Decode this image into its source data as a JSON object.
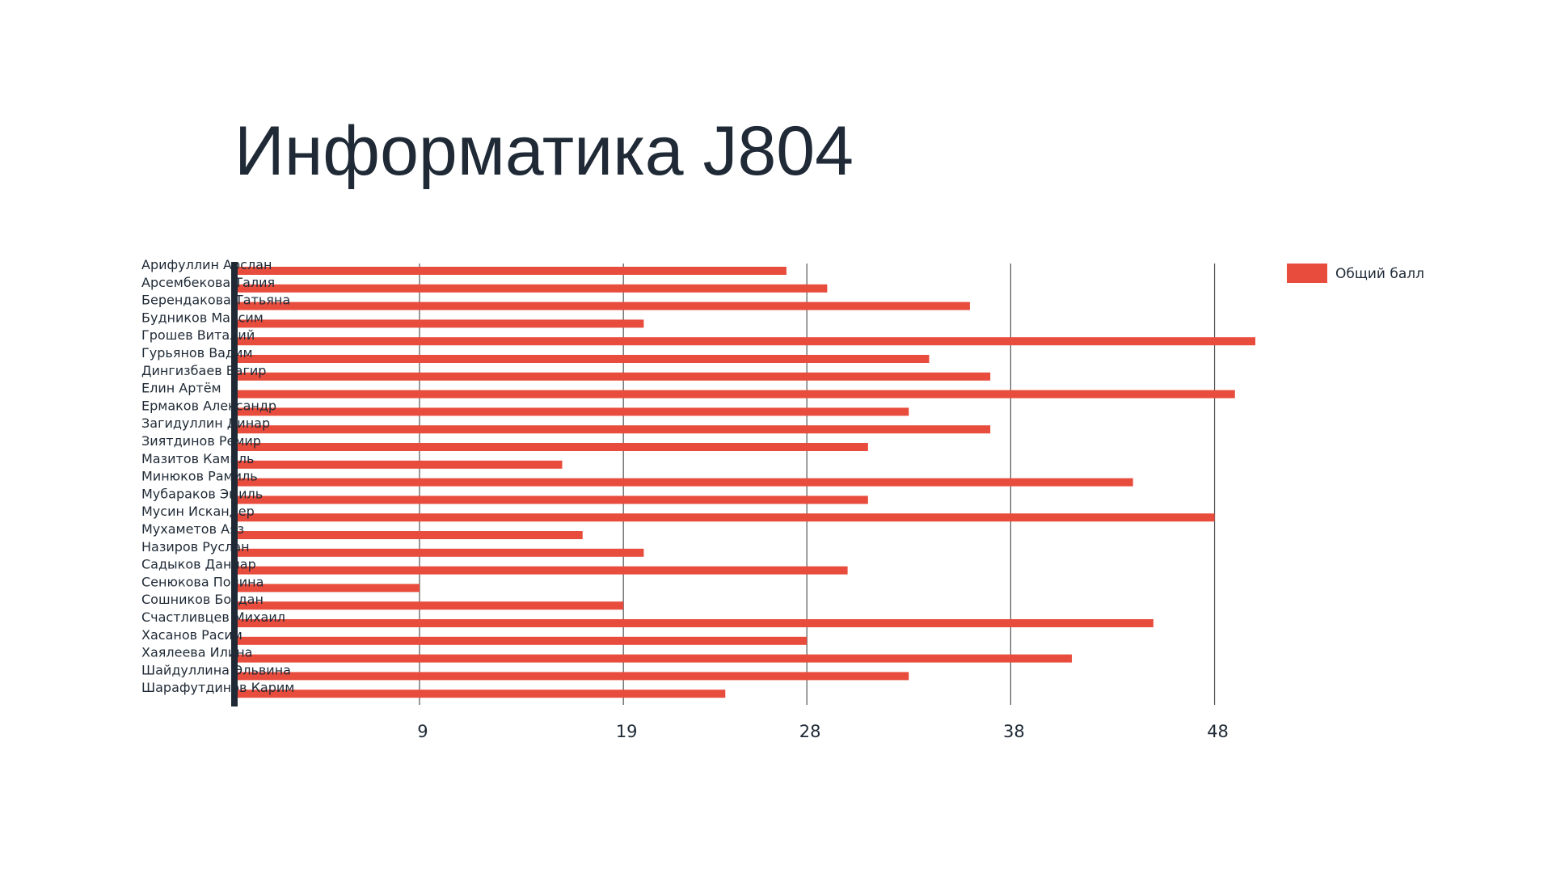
{
  "title": "Информатика J804",
  "colors": {
    "bar": "#e84c3d",
    "axis": "#1f2a36",
    "grid": "#555555",
    "text": "#1f2a36"
  },
  "chart_data": {
    "type": "bar",
    "orientation": "horizontal",
    "title": "Информатика J804",
    "xlim": [
      0,
      48
    ],
    "x_ticks": [
      9,
      19,
      28,
      38,
      48
    ],
    "grid": "vertical",
    "legend_position": "top-right",
    "categories": [
      "Арифуллин Арслан",
      "Арсембекова Талия",
      "Берендакова Татьяна",
      "Будников Максим",
      "Грошев Виталий",
      "Гурьянов Вадим",
      "Дингизбаев Вагир",
      "Елин Артём",
      "Ермаков Александр",
      "Загидуллин Динар",
      "Зиятдинов Ремир",
      "Мазитов Камиль",
      "Минюков Рамиль",
      "Мубараков Эмиль",
      "Мусин Искандер",
      "Мухаметов Аяз",
      "Назиров Руслан",
      "Садыков Даниар",
      "Сенюкова Полина",
      "Сошников Богдан",
      "Счастливцев Михаил",
      "Хасанов Расим",
      "Хаялеева Илина",
      "Шайдуллина Эльвина",
      "Шарафутдинов Карим"
    ],
    "series": [
      {
        "name": "Общий балл",
        "values": [
          27,
          29,
          36,
          20,
          50,
          34,
          37,
          49,
          33,
          37,
          31,
          16,
          44,
          31,
          48,
          17,
          20,
          30,
          9,
          19,
          45,
          28,
          41,
          33,
          24
        ]
      }
    ]
  }
}
